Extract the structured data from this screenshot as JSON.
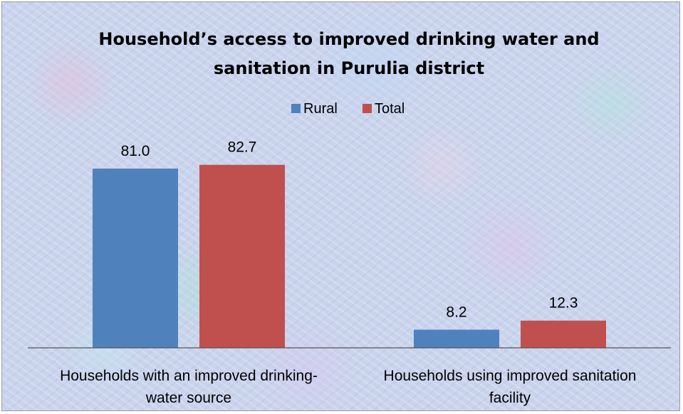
{
  "chart_data": {
    "type": "bar",
    "title_lines": [
      "Household’s access to improved drinking water and",
      "sanitation in Purulia district"
    ],
    "categories": [
      [
        "Households with an improved drinking-",
        "water source"
      ],
      [
        "Households using improved sanitation",
        "facility"
      ]
    ],
    "series": [
      {
        "name": "Rural",
        "color": "#4f81bd",
        "values": [
          81.0,
          8.2
        ],
        "labels": [
          "81.0",
          "8.2"
        ]
      },
      {
        "name": "Total",
        "color": "#c0504d",
        "values": [
          82.7,
          12.3
        ],
        "labels": [
          "82.7",
          "12.3"
        ]
      }
    ],
    "ylim": [
      0,
      90
    ],
    "grid": false,
    "legend_position": "top",
    "xlabel": "",
    "ylabel": ""
  }
}
